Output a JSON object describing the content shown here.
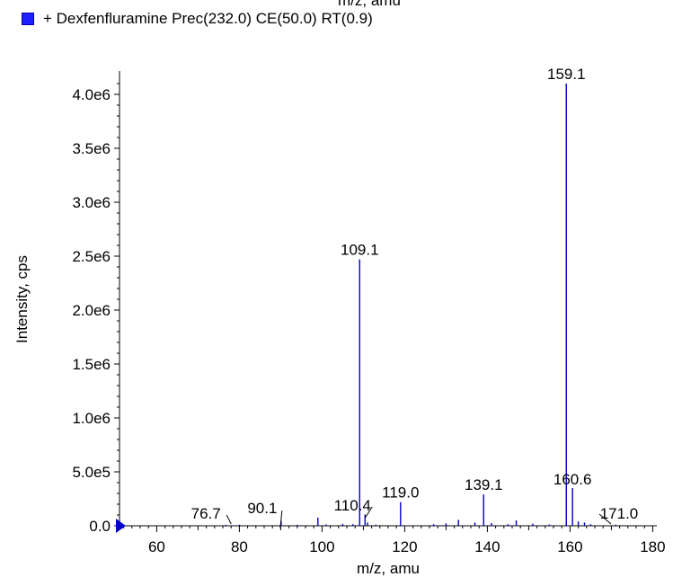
{
  "chart_data": {
    "type": "bar",
    "cut_off_top_text": "m/z, amu",
    "legend": {
      "label": "+ Dexfenfluramine Prec(232.0) CE(50.0) RT(0.9)",
      "color": "#1f1fff"
    },
    "xlabel": "m/z, amu",
    "ylabel": "Intensity, cps",
    "xlim": [
      51,
      181
    ],
    "ylim": [
      0,
      4200000
    ],
    "x_ticks": [
      "60",
      "80",
      "100",
      "120",
      "140",
      "160",
      "180"
    ],
    "y_ticks": [
      "0.0",
      "5.0e5",
      "1.0e6",
      "1.5e6",
      "2.0e6",
      "2.5e6",
      "3.0e6",
      "3.5e6",
      "4.0e6"
    ],
    "y_tick_values": [
      0,
      500000,
      1000000,
      1500000,
      2000000,
      2500000,
      3000000,
      3500000,
      4000000
    ],
    "series": [
      {
        "color": "#0000cc",
        "peaks": [
          {
            "x": 76.7,
            "y": 8000
          },
          {
            "x": 80.0,
            "y": 10000
          },
          {
            "x": 90.1,
            "y": 45000
          },
          {
            "x": 94.0,
            "y": 6000
          },
          {
            "x": 99.0,
            "y": 75000
          },
          {
            "x": 101.0,
            "y": 12000
          },
          {
            "x": 105.0,
            "y": 18000
          },
          {
            "x": 107.5,
            "y": 15000
          },
          {
            "x": 109.1,
            "y": 2470000
          },
          {
            "x": 110.4,
            "y": 105000
          },
          {
            "x": 111.0,
            "y": 30000
          },
          {
            "x": 113.0,
            "y": 10000
          },
          {
            "x": 119.0,
            "y": 220000
          },
          {
            "x": 127.0,
            "y": 15000
          },
          {
            "x": 130.0,
            "y": 22000
          },
          {
            "x": 133.0,
            "y": 55000
          },
          {
            "x": 137.0,
            "y": 30000
          },
          {
            "x": 139.1,
            "y": 290000
          },
          {
            "x": 141.0,
            "y": 25000
          },
          {
            "x": 145.0,
            "y": 15000
          },
          {
            "x": 147.0,
            "y": 50000
          },
          {
            "x": 151.0,
            "y": 20000
          },
          {
            "x": 155.0,
            "y": 12000
          },
          {
            "x": 159.1,
            "y": 4100000
          },
          {
            "x": 160.6,
            "y": 350000
          },
          {
            "x": 162.0,
            "y": 40000
          },
          {
            "x": 163.5,
            "y": 30000
          },
          {
            "x": 165.0,
            "y": 15000
          },
          {
            "x": 171.0,
            "y": 10000
          }
        ]
      }
    ],
    "peak_labels": [
      {
        "text": "159.1",
        "x": 159.1,
        "y": 4100000
      },
      {
        "text": "109.1",
        "x": 109.1,
        "y": 2470000
      },
      {
        "text": "160.6",
        "x": 160.6,
        "y": 350000
      },
      {
        "text": "139.1",
        "x": 139.1,
        "y": 290000
      },
      {
        "text": "119.0",
        "x": 119.0,
        "y": 220000
      },
      {
        "text": "110.4",
        "x": 110.4,
        "y": 105000
      },
      {
        "text": "90.1",
        "x": 90.1,
        "y": 45000
      },
      {
        "text": "76.7",
        "x": 76.7,
        "y": 8000
      },
      {
        "text": "171.0",
        "x": 171.0,
        "y": 10000
      }
    ],
    "marker_color": "#0000cc"
  }
}
